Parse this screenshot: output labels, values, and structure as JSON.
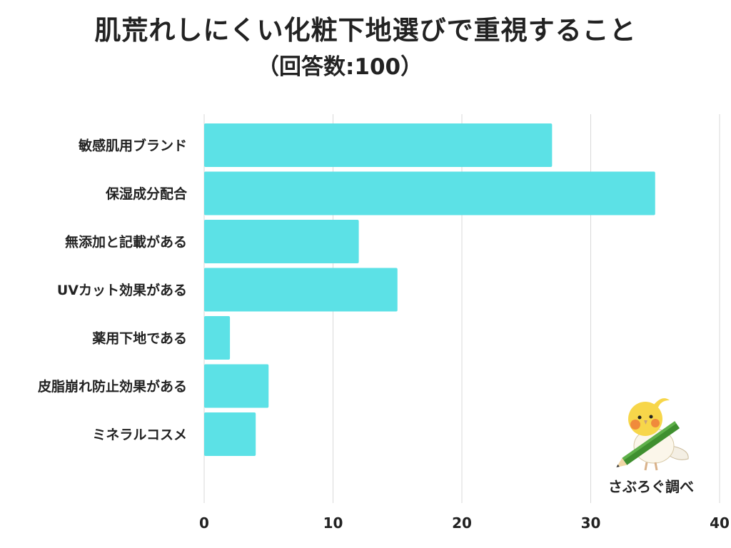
{
  "chart_data": {
    "type": "bar",
    "orientation": "horizontal",
    "title": "肌荒れしにくい化粧下地選びで重視すること",
    "subtitle": "（回答数:100）",
    "categories": [
      "敏感肌用ブランド",
      "保湿成分配合",
      "無添加と記載がある",
      "UVカット効果がある",
      "薬用下地である",
      "皮脂崩れ防止効果がある",
      "ミネラルコスメ"
    ],
    "values": [
      27,
      35,
      12,
      15,
      2,
      5,
      4
    ],
    "xlim": [
      0,
      40
    ],
    "xticks": [
      0,
      10,
      20,
      30,
      40
    ],
    "grid": true,
    "legend": "none",
    "bar_color": "#5ce1e6"
  },
  "credit": "さぶろぐ調べ",
  "mascot_icon": "bird-with-pencil-icon"
}
